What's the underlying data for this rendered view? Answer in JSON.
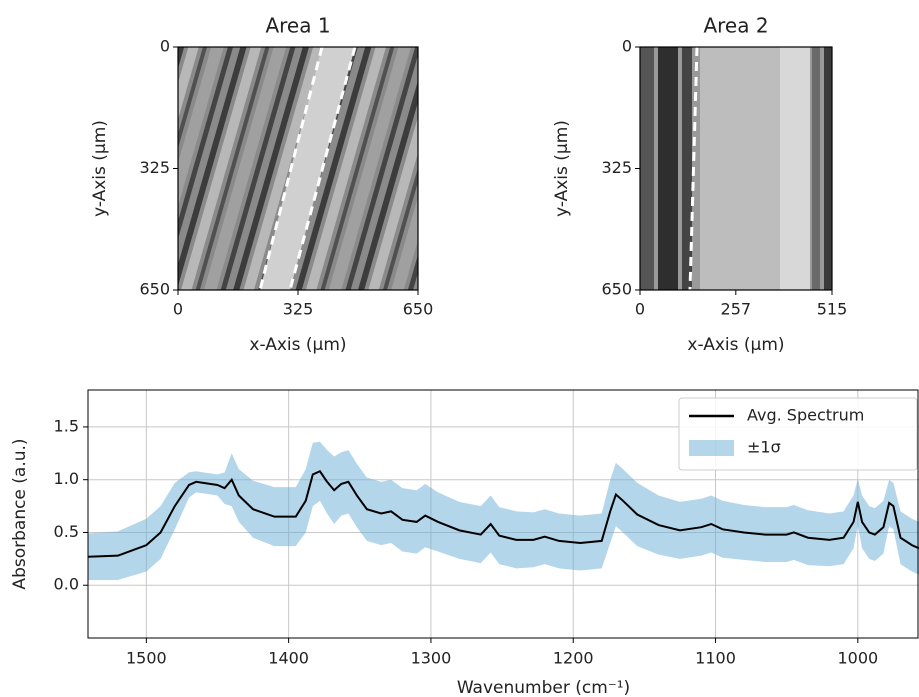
{
  "chart_data": [
    {
      "type": "image",
      "title": "Area 1",
      "x_label": "x-Axis (μm)",
      "y_label": "y-Axis (μm)",
      "xlim": [
        0,
        650
      ],
      "ylim": [
        650,
        0
      ],
      "xticks": [
        0,
        325,
        650
      ],
      "yticks": [
        0,
        325,
        650
      ]
    },
    {
      "type": "image",
      "title": "Area 2",
      "x_label": "x-Axis (μm)",
      "y_label": "y-Axis (μm)",
      "xlim": [
        0,
        515
      ],
      "ylim": [
        650,
        0
      ],
      "xticks": [
        0,
        257,
        515
      ],
      "yticks": [
        0,
        325,
        650
      ]
    },
    {
      "type": "line",
      "x_label": "Wavenumber (cm⁻¹)",
      "y_label": "Absorbance (a.u.)",
      "xlim": [
        1541,
        957
      ],
      "ylim": [
        -0.5,
        1.85
      ],
      "xticks": [
        1500,
        1400,
        1300,
        1200,
        1100,
        1000
      ],
      "yticks": [
        {
          "value": 0,
          "label": "0.0"
        },
        0.5,
        {
          "value": 1,
          "label": "1.0"
        },
        1.5
      ],
      "grid": true,
      "legend": "upper right",
      "x": [
        1541,
        1520,
        1500,
        1490,
        1480,
        1470,
        1465,
        1460,
        1450,
        1445,
        1440,
        1435,
        1425,
        1410,
        1395,
        1388,
        1383,
        1378,
        1373,
        1368,
        1363,
        1358,
        1352,
        1345,
        1335,
        1328,
        1320,
        1310,
        1304,
        1295,
        1280,
        1265,
        1258,
        1252,
        1240,
        1228,
        1220,
        1210,
        1195,
        1180,
        1174,
        1170,
        1165,
        1155,
        1140,
        1125,
        1110,
        1103,
        1095,
        1080,
        1065,
        1050,
        1045,
        1035,
        1020,
        1010,
        1003,
        1000,
        997,
        992,
        988,
        982,
        978,
        975,
        970,
        962,
        957
      ],
      "series": [
        {
          "name": "Avg. Spectrum",
          "color": "#000000",
          "values": [
            0.27,
            0.28,
            0.38,
            0.5,
            0.75,
            0.95,
            0.98,
            0.97,
            0.95,
            0.92,
            1.0,
            0.85,
            0.72,
            0.65,
            0.65,
            0.8,
            1.05,
            1.08,
            0.98,
            0.9,
            0.96,
            0.98,
            0.85,
            0.72,
            0.68,
            0.7,
            0.62,
            0.6,
            0.66,
            0.6,
            0.52,
            0.48,
            0.58,
            0.47,
            0.43,
            0.43,
            0.46,
            0.42,
            0.4,
            0.42,
            0.7,
            0.86,
            0.8,
            0.67,
            0.57,
            0.52,
            0.55,
            0.58,
            0.53,
            0.5,
            0.48,
            0.48,
            0.5,
            0.45,
            0.43,
            0.45,
            0.6,
            0.79,
            0.6,
            0.5,
            0.48,
            0.55,
            0.78,
            0.75,
            0.45,
            0.38,
            0.35
          ]
        },
        {
          "name": "±1σ",
          "color": "#6aaed6",
          "values": [
            0.22,
            0.23,
            0.25,
            0.25,
            0.22,
            0.12,
            0.1,
            0.1,
            0.1,
            0.15,
            0.25,
            0.25,
            0.27,
            0.28,
            0.28,
            0.3,
            0.3,
            0.28,
            0.3,
            0.32,
            0.3,
            0.3,
            0.3,
            0.3,
            0.3,
            0.3,
            0.3,
            0.3,
            0.3,
            0.28,
            0.27,
            0.27,
            0.27,
            0.27,
            0.27,
            0.26,
            0.26,
            0.26,
            0.26,
            0.26,
            0.3,
            0.3,
            0.3,
            0.3,
            0.28,
            0.27,
            0.27,
            0.27,
            0.27,
            0.26,
            0.26,
            0.26,
            0.26,
            0.26,
            0.25,
            0.25,
            0.25,
            0.22,
            0.25,
            0.25,
            0.25,
            0.25,
            0.22,
            0.22,
            0.25,
            0.25,
            0.25
          ]
        }
      ]
    }
  ]
}
